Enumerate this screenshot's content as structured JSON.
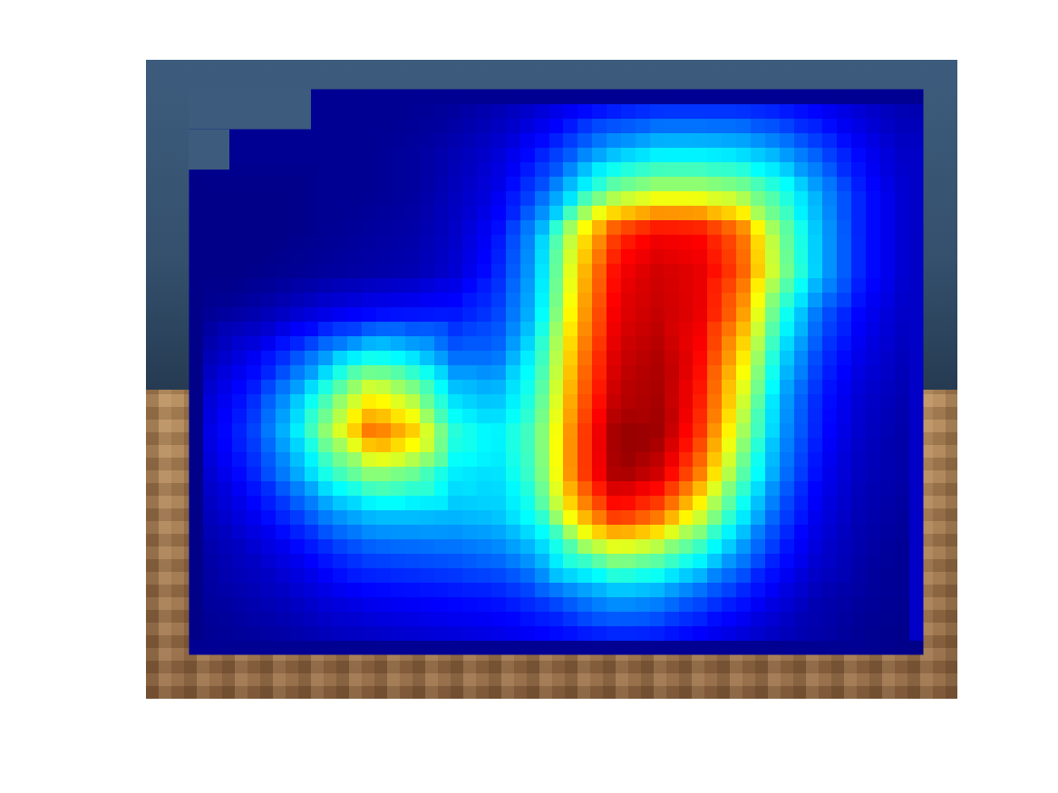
{
  "chart_data": {
    "type": "heatmap",
    "tick_labels": false,
    "color_range": [
      0,
      1
    ],
    "cells": [
      [
        null,
        null,
        null,
        0.02,
        0.02,
        0.02,
        0.03,
        0.05,
        0.08,
        0.12,
        0.15,
        0.17,
        0.17,
        0.17,
        0.15,
        0.12,
        0.08,
        0.05
      ],
      [
        null,
        0.02,
        0.02,
        0.02,
        0.02,
        0.03,
        0.05,
        0.08,
        0.14,
        0.22,
        0.3,
        0.34,
        0.34,
        0.33,
        0.28,
        0.2,
        0.12,
        0.07
      ],
      [
        0.01,
        0.01,
        0.01,
        0.02,
        0.02,
        0.03,
        0.06,
        0.1,
        0.2,
        0.35,
        0.5,
        0.55,
        0.55,
        0.52,
        0.42,
        0.28,
        0.15,
        0.08
      ],
      [
        0.01,
        0.01,
        0.01,
        0.02,
        0.03,
        0.04,
        0.07,
        0.13,
        0.28,
        0.6,
        0.82,
        0.88,
        0.87,
        0.78,
        0.5,
        0.3,
        0.15,
        0.08
      ],
      [
        0.01,
        0.01,
        0.02,
        0.03,
        0.04,
        0.05,
        0.08,
        0.15,
        0.3,
        0.65,
        0.88,
        0.92,
        0.9,
        0.8,
        0.52,
        0.3,
        0.15,
        0.08
      ],
      [
        0.02,
        0.04,
        0.07,
        0.1,
        0.12,
        0.13,
        0.14,
        0.18,
        0.32,
        0.68,
        0.9,
        0.93,
        0.9,
        0.75,
        0.42,
        0.22,
        0.12,
        0.07
      ],
      [
        0.05,
        0.1,
        0.18,
        0.28,
        0.36,
        0.32,
        0.22,
        0.22,
        0.38,
        0.72,
        0.92,
        0.95,
        0.88,
        0.68,
        0.35,
        0.18,
        0.1,
        0.06
      ],
      [
        0.08,
        0.15,
        0.28,
        0.45,
        0.62,
        0.52,
        0.33,
        0.3,
        0.42,
        0.75,
        0.94,
        0.96,
        0.86,
        0.62,
        0.3,
        0.15,
        0.08,
        0.05
      ],
      [
        0.1,
        0.18,
        0.33,
        0.55,
        0.78,
        0.68,
        0.42,
        0.36,
        0.46,
        0.78,
        0.98,
        0.97,
        0.83,
        0.56,
        0.28,
        0.14,
        0.07,
        0.04
      ],
      [
        0.08,
        0.15,
        0.27,
        0.42,
        0.52,
        0.48,
        0.36,
        0.34,
        0.45,
        0.78,
        0.97,
        0.92,
        0.76,
        0.48,
        0.25,
        0.12,
        0.06,
        0.04
      ],
      [
        0.06,
        0.11,
        0.18,
        0.27,
        0.32,
        0.32,
        0.31,
        0.32,
        0.4,
        0.68,
        0.85,
        0.78,
        0.6,
        0.38,
        0.2,
        0.1,
        0.05,
        0.03
      ],
      [
        0.04,
        0.07,
        0.11,
        0.16,
        0.2,
        0.21,
        0.22,
        0.24,
        0.3,
        0.45,
        0.55,
        0.5,
        0.4,
        0.27,
        0.15,
        0.08,
        0.04,
        0.02
      ],
      [
        0.03,
        0.05,
        0.07,
        0.1,
        0.12,
        0.13,
        0.14,
        0.15,
        0.19,
        0.25,
        0.3,
        0.28,
        0.22,
        0.16,
        0.1,
        0.05,
        0.03,
        0.02
      ],
      [
        0.02,
        0.03,
        0.04,
        0.06,
        0.07,
        0.08,
        0.09,
        0.1,
        0.12,
        0.14,
        0.16,
        0.15,
        0.12,
        0.09,
        0.06,
        0.04,
        0.02,
        0.01
      ]
    ]
  }
}
